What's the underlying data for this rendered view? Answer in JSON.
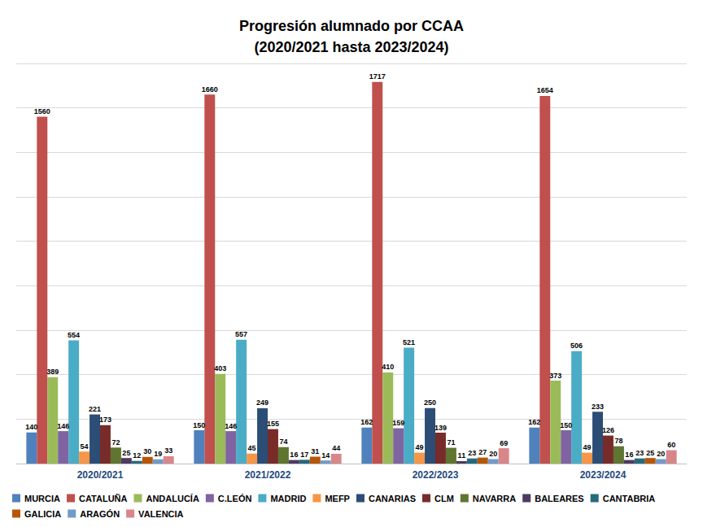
{
  "chart_data": {
    "type": "bar",
    "title": "Progresión alumnado por CCAA\n(2020/2021 hasta 2023/2024)",
    "categories": [
      "2020/2021",
      "2021/2022",
      "2022/2023",
      "2023/2024"
    ],
    "series": [
      {
        "name": "MURCIA",
        "color": "#4f81bd",
        "values": [
          140,
          150,
          162,
          162
        ]
      },
      {
        "name": "CATALUÑA",
        "color": "#c0504d",
        "values": [
          1560,
          1660,
          1717,
          1654
        ]
      },
      {
        "name": "ANDALUCÍA",
        "color": "#9bbb59",
        "values": [
          389,
          403,
          410,
          373
        ]
      },
      {
        "name": "C.LEÓN",
        "color": "#8064a2",
        "values": [
          146,
          146,
          159,
          150
        ]
      },
      {
        "name": "MADRID",
        "color": "#4bacc6",
        "values": [
          554,
          557,
          521,
          506
        ]
      },
      {
        "name": "MEFP",
        "color": "#f79646",
        "values": [
          54,
          45,
          49,
          49
        ]
      },
      {
        "name": "CANARIAS",
        "color": "#2c4d75",
        "values": [
          221,
          249,
          250,
          233
        ]
      },
      {
        "name": "CLM",
        "color": "#772c2a",
        "values": [
          173,
          155,
          139,
          126
        ]
      },
      {
        "name": "NAVARRA",
        "color": "#5f7530",
        "values": [
          72,
          74,
          71,
          78
        ]
      },
      {
        "name": "BALEARES",
        "color": "#4d3b62",
        "values": [
          25,
          16,
          11,
          16
        ]
      },
      {
        "name": "CANTABRIA",
        "color": "#276a7c",
        "values": [
          12,
          17,
          23,
          23
        ]
      },
      {
        "name": "GALICIA",
        "color": "#b65708",
        "values": [
          30,
          31,
          27,
          25
        ]
      },
      {
        "name": "ARAGÓN",
        "color": "#729aca",
        "values": [
          19,
          14,
          20,
          20
        ]
      },
      {
        "name": "VALENCIA",
        "color": "#d9868a",
        "values": [
          33,
          44,
          69,
          60
        ]
      }
    ],
    "ylim": [
      0,
      1800
    ],
    "yticks": [
      0,
      200,
      400,
      600,
      800,
      1000,
      1200,
      1400,
      1600,
      1800
    ],
    "grid": true,
    "legend": "bottom",
    "data_labels": true,
    "tick_labels": "x"
  }
}
